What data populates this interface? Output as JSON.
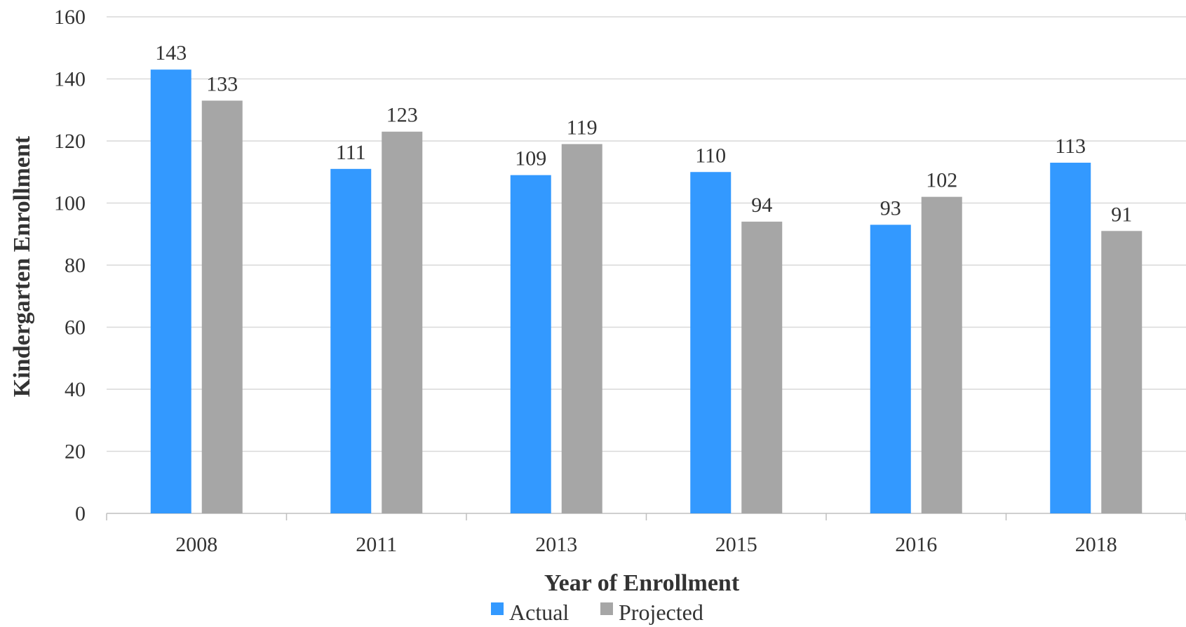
{
  "chart_data": {
    "type": "bar",
    "categories": [
      "2008",
      "2011",
      "2013",
      "2015",
      "2016",
      "2018"
    ],
    "series": [
      {
        "name": "Actual",
        "values": [
          143,
          111,
          109,
          110,
          93,
          113
        ],
        "color": "#3399ff"
      },
      {
        "name": "Projected",
        "values": [
          133,
          123,
          119,
          94,
          102,
          91
        ],
        "color": "#a6a6a6"
      }
    ],
    "xlabel": "Year of Enrollment",
    "ylabel": "Kindergarten Enrollment",
    "ylim": [
      0,
      160
    ],
    "yticks": [
      "0",
      "20",
      "40",
      "60",
      "80",
      "100",
      "120",
      "140",
      "160"
    ],
    "grid": true,
    "legend_position": "bottom",
    "data_labels": true
  }
}
